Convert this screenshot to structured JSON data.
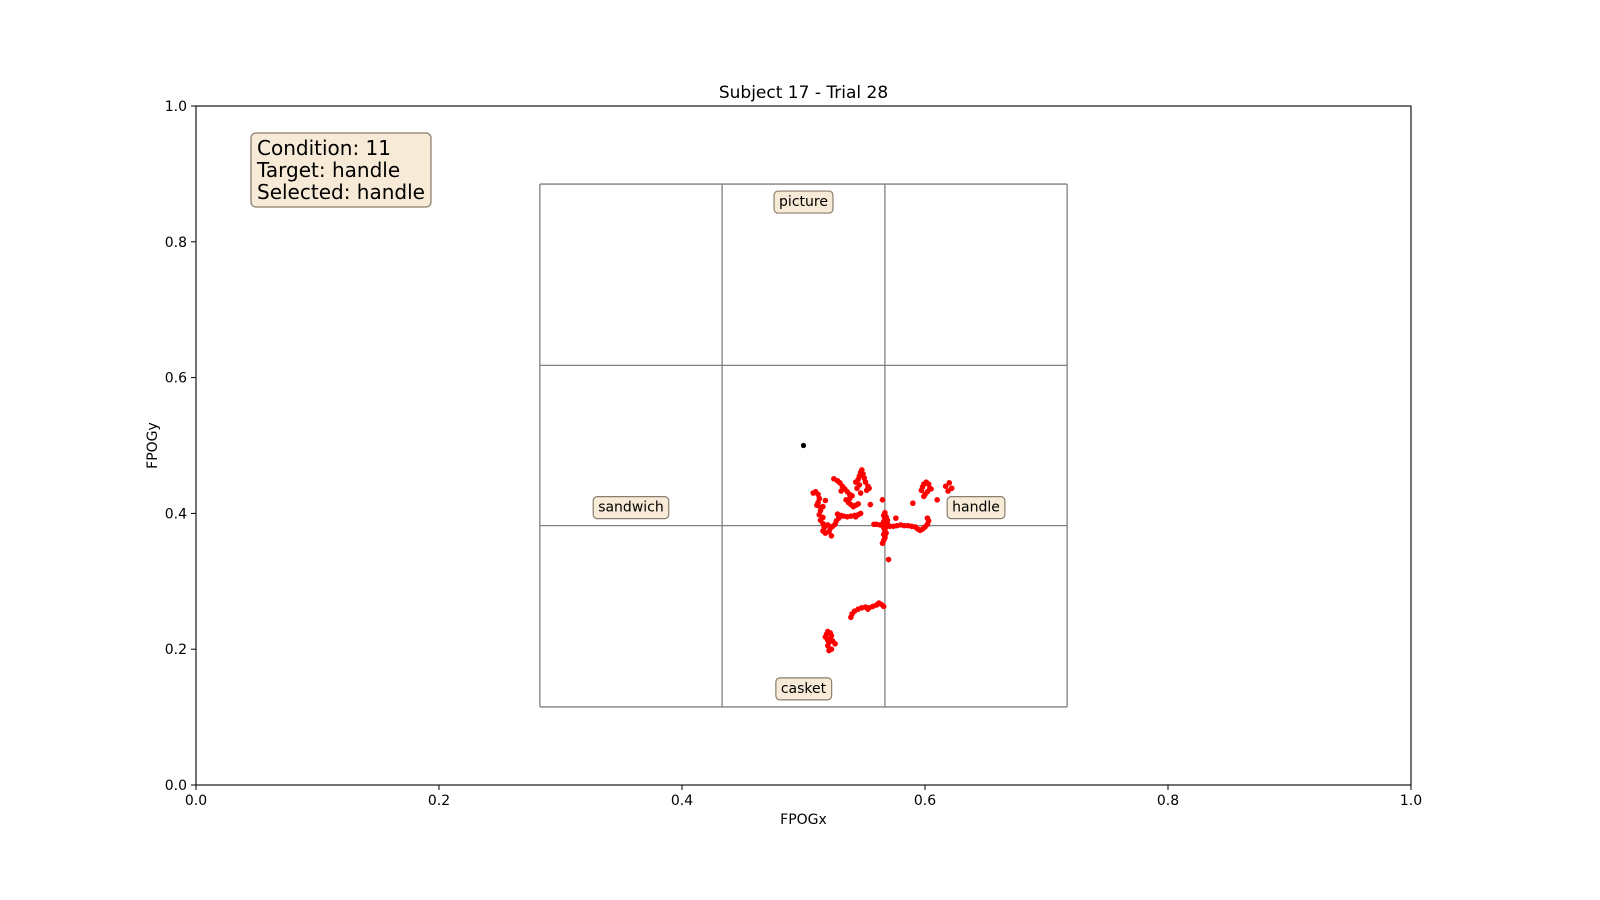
{
  "chart_data": {
    "type": "scatter",
    "title": "Subject 17 - Trial 28",
    "xlabel": "FPOGx",
    "ylabel": "FPOGy",
    "xlim": [
      0.0,
      1.0
    ],
    "ylim": [
      0.0,
      1.0
    ],
    "x_ticks": [
      0.0,
      0.2,
      0.4,
      0.6,
      0.8,
      1.0
    ],
    "y_ticks": [
      0.0,
      0.2,
      0.4,
      0.6,
      0.8,
      1.0
    ],
    "x_tick_labels": [
      "0.0",
      "0.2",
      "0.4",
      "0.6",
      "0.8",
      "1.0"
    ],
    "y_tick_labels": [
      "0.0",
      "0.2",
      "0.4",
      "0.6",
      "0.8",
      "1.0"
    ],
    "grid": false,
    "info_box": {
      "position": "top-left",
      "lines": [
        "Condition: 11",
        "Target: handle",
        "Selected: handle"
      ]
    },
    "aoi_grid": {
      "x_lines": [
        0.283,
        0.433,
        0.567,
        0.717
      ],
      "y_lines": [
        0.115,
        0.382,
        0.618,
        0.885
      ],
      "color": "#808080"
    },
    "aoi_labels": [
      {
        "text": "picture",
        "x": 0.5,
        "y": 0.86
      },
      {
        "text": "sandwich",
        "x": 0.358,
        "y": 0.41
      },
      {
        "text": "handle",
        "x": 0.642,
        "y": 0.41
      },
      {
        "text": "casket",
        "x": 0.5,
        "y": 0.143
      }
    ],
    "fixation_point": {
      "x": 0.5,
      "y": 0.5,
      "color": "#000000"
    },
    "gaze_color": "#ff0000",
    "series": [
      {
        "points": [
          [
            0.52,
            0.205
          ],
          [
            0.521,
            0.21
          ],
          [
            0.522,
            0.215
          ],
          [
            0.523,
            0.22
          ],
          [
            0.522,
            0.224
          ],
          [
            0.519,
            0.222
          ],
          [
            0.518,
            0.218
          ],
          [
            0.52,
            0.213
          ],
          [
            0.524,
            0.212
          ],
          [
            0.526,
            0.208
          ],
          [
            0.523,
            0.2
          ],
          [
            0.521,
            0.198
          ],
          [
            0.52,
            0.226
          ],
          [
            0.539,
            0.247
          ],
          [
            0.54,
            0.252
          ],
          [
            0.542,
            0.256
          ],
          [
            0.545,
            0.259
          ],
          [
            0.548,
            0.261
          ],
          [
            0.551,
            0.262
          ],
          [
            0.554,
            0.261
          ],
          [
            0.557,
            0.263
          ],
          [
            0.56,
            0.265
          ],
          [
            0.562,
            0.268
          ],
          [
            0.564,
            0.266
          ],
          [
            0.566,
            0.263
          ],
          [
            0.553,
            0.259
          ],
          [
            0.565,
            0.384
          ],
          [
            0.566,
            0.379
          ],
          [
            0.567,
            0.374
          ],
          [
            0.566,
            0.369
          ],
          [
            0.567,
            0.364
          ],
          [
            0.566,
            0.36
          ],
          [
            0.565,
            0.356
          ],
          [
            0.566,
            0.388
          ],
          [
            0.567,
            0.393
          ],
          [
            0.566,
            0.397
          ],
          [
            0.567,
            0.401
          ],
          [
            0.568,
            0.395
          ],
          [
            0.569,
            0.39
          ],
          [
            0.569,
            0.385
          ],
          [
            0.568,
            0.38
          ],
          [
            0.568,
            0.371
          ],
          [
            0.567,
            0.366
          ],
          [
            0.563,
            0.383
          ],
          [
            0.56,
            0.384
          ],
          [
            0.558,
            0.384
          ],
          [
            0.57,
            0.332
          ],
          [
            0.571,
            0.381
          ],
          [
            0.574,
            0.381
          ],
          [
            0.577,
            0.382
          ],
          [
            0.58,
            0.383
          ],
          [
            0.583,
            0.382
          ],
          [
            0.586,
            0.382
          ],
          [
            0.589,
            0.381
          ],
          [
            0.592,
            0.38
          ],
          [
            0.594,
            0.377
          ],
          [
            0.596,
            0.375
          ],
          [
            0.598,
            0.377
          ],
          [
            0.6,
            0.38
          ],
          [
            0.602,
            0.384
          ],
          [
            0.603,
            0.389
          ],
          [
            0.602,
            0.393
          ],
          [
            0.576,
            0.393
          ],
          [
            0.597,
            0.434
          ],
          [
            0.598,
            0.439
          ],
          [
            0.599,
            0.443
          ],
          [
            0.601,
            0.446
          ],
          [
            0.603,
            0.443
          ],
          [
            0.604,
            0.437
          ],
          [
            0.602,
            0.432
          ],
          [
            0.6,
            0.428
          ],
          [
            0.599,
            0.425
          ],
          [
            0.605,
            0.436
          ],
          [
            0.59,
            0.415
          ],
          [
            0.617,
            0.44
          ],
          [
            0.62,
            0.445
          ],
          [
            0.622,
            0.437
          ],
          [
            0.619,
            0.433
          ],
          [
            0.61,
            0.42
          ],
          [
            0.508,
            0.43
          ],
          [
            0.51,
            0.432
          ],
          [
            0.512,
            0.428
          ],
          [
            0.513,
            0.422
          ],
          [
            0.512,
            0.416
          ],
          [
            0.511,
            0.412
          ],
          [
            0.514,
            0.409
          ],
          [
            0.516,
            0.41
          ],
          [
            0.514,
            0.404
          ],
          [
            0.513,
            0.398
          ],
          [
            0.516,
            0.394
          ],
          [
            0.514,
            0.39
          ],
          [
            0.516,
            0.385
          ],
          [
            0.517,
            0.379
          ],
          [
            0.516,
            0.374
          ],
          [
            0.518,
            0.371
          ],
          [
            0.521,
            0.373
          ],
          [
            0.523,
            0.367
          ],
          [
            0.52,
            0.383
          ],
          [
            0.518,
            0.419
          ],
          [
            0.522,
            0.378
          ],
          [
            0.524,
            0.381
          ],
          [
            0.526,
            0.384
          ],
          [
            0.527,
            0.389
          ],
          [
            0.529,
            0.393
          ],
          [
            0.531,
            0.397
          ],
          [
            0.533,
            0.396
          ],
          [
            0.536,
            0.395
          ],
          [
            0.539,
            0.396
          ],
          [
            0.542,
            0.397
          ],
          [
            0.545,
            0.398
          ],
          [
            0.547,
            0.4
          ],
          [
            0.543,
            0.395
          ],
          [
            0.528,
            0.399
          ],
          [
            0.525,
            0.451
          ],
          [
            0.528,
            0.448
          ],
          [
            0.53,
            0.445
          ],
          [
            0.532,
            0.44
          ],
          [
            0.534,
            0.436
          ],
          [
            0.536,
            0.432
          ],
          [
            0.538,
            0.428
          ],
          [
            0.54,
            0.426
          ],
          [
            0.538,
            0.422
          ],
          [
            0.535,
            0.42
          ],
          [
            0.537,
            0.416
          ],
          [
            0.539,
            0.413
          ],
          [
            0.541,
            0.41
          ],
          [
            0.543,
            0.412
          ],
          [
            0.545,
            0.414
          ],
          [
            0.547,
            0.43
          ],
          [
            0.544,
            0.437
          ],
          [
            0.531,
            0.433
          ],
          [
            0.543,
            0.446
          ],
          [
            0.545,
            0.45
          ],
          [
            0.546,
            0.455
          ],
          [
            0.547,
            0.46
          ],
          [
            0.548,
            0.464
          ],
          [
            0.549,
            0.458
          ],
          [
            0.55,
            0.452
          ],
          [
            0.551,
            0.446
          ],
          [
            0.553,
            0.44
          ],
          [
            0.554,
            0.437
          ],
          [
            0.552,
            0.434
          ],
          [
            0.546,
            0.442
          ],
          [
            0.555,
            0.413
          ],
          [
            0.565,
            0.42
          ]
        ]
      }
    ]
  }
}
